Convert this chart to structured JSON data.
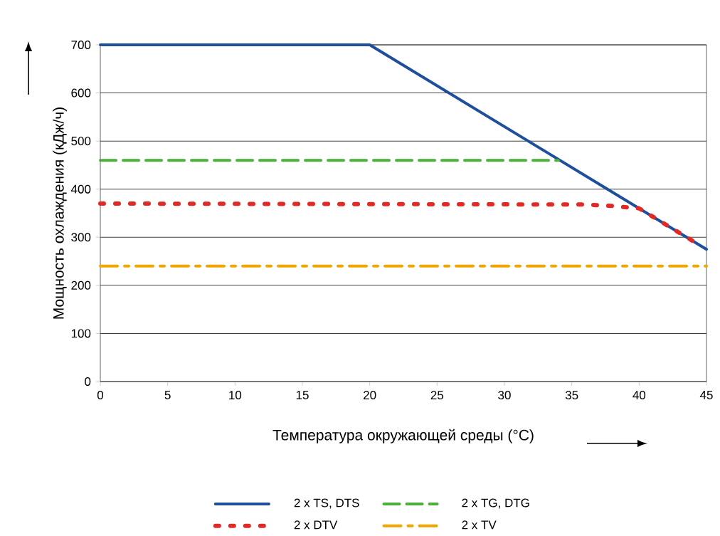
{
  "chart_data": {
    "type": "line",
    "xlabel": "Температура окружающей среды (°C)",
    "ylabel": "Мощность охлаждения (кДж/ч)",
    "xlim": [
      0,
      45
    ],
    "xticks": [
      0,
      5,
      10,
      15,
      20,
      25,
      30,
      35,
      40,
      45
    ],
    "ylim": [
      0,
      700
    ],
    "yticks": [
      0,
      100,
      200,
      300,
      400,
      500,
      600,
      700
    ],
    "grid": "y",
    "legend": "bottom",
    "marker": "none",
    "series": [
      {
        "name": "2 x TS, DTS",
        "color": "#1f4e9c",
        "line_style": "solid",
        "x": [
          0,
          20,
          45
        ],
        "values": [
          700,
          700,
          275
        ]
      },
      {
        "name": "2 x TG, DTG",
        "color": "#4caf3c",
        "line_style": "dashed",
        "x": [
          0,
          34
        ],
        "values": [
          460,
          460
        ]
      },
      {
        "name": "2 x DTV",
        "color": "#e02a26",
        "line_style": "dotted",
        "x": [
          0,
          36,
          38,
          40,
          42,
          44
        ],
        "values": [
          370,
          368,
          365,
          360,
          326,
          292
        ]
      },
      {
        "name": "2 x TV",
        "color": "#f0a500",
        "line_style": "dashdot",
        "x": [
          0,
          45
        ],
        "values": [
          240,
          240
        ]
      }
    ]
  }
}
